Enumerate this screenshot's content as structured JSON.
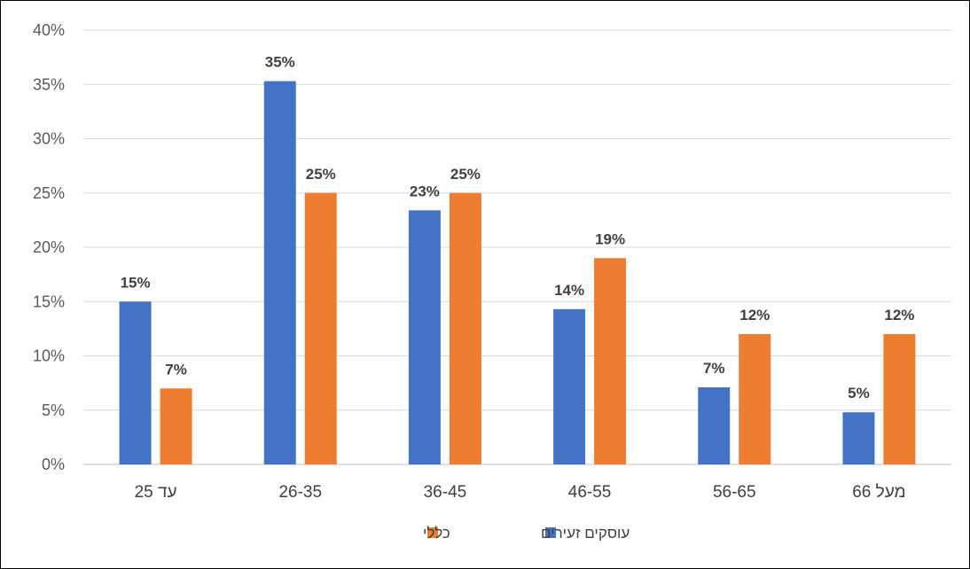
{
  "chart_data": {
    "type": "bar",
    "categories": [
      "עד 25",
      "26-35",
      "36-45",
      "46-55",
      "56-65",
      "מעל 66"
    ],
    "series": [
      {
        "name": "עוסקים זעירים",
        "color": "#4472C4",
        "values": [
          15,
          35.3,
          23.4,
          14.3,
          7.1,
          4.8
        ],
        "labels": [
          "15%",
          "35%",
          "23%",
          "14%",
          "7%",
          "5%"
        ]
      },
      {
        "name": "כללי",
        "color": "#ED7D31",
        "values": [
          7,
          25,
          25,
          19,
          12,
          12
        ],
        "labels": [
          "7%",
          "25%",
          "25%",
          "19%",
          "12%",
          "12%"
        ]
      }
    ],
    "ylim": [
      0,
      40
    ],
    "yticks": [
      "0%",
      "5%",
      "10%",
      "15%",
      "20%",
      "25%",
      "30%",
      "35%",
      "40%"
    ],
    "grid": true,
    "legend_position": "bottom",
    "title": "",
    "xlabel": "",
    "ylabel": ""
  }
}
